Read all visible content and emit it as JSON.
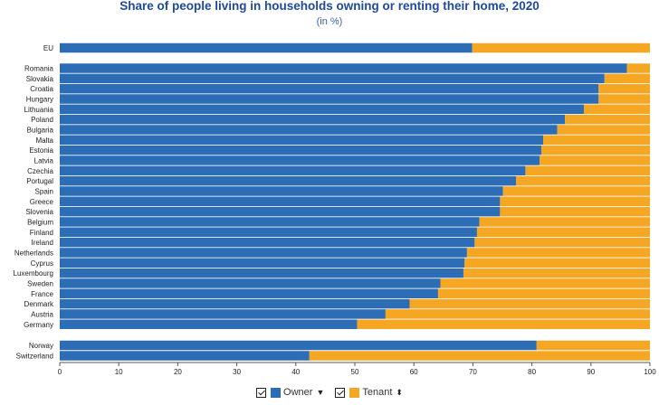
{
  "title": "Share of people living in households owning or renting their home, 2020",
  "subtitle": "(in %)",
  "colors": {
    "owner": "#2c6db5",
    "tenant": "#f5a623"
  },
  "legend": {
    "owner_label": "Owner",
    "tenant_label": "Tenant",
    "owner_sort_icon": "sort-desc-icon",
    "tenant_sort_icon": "sort-both-icon",
    "checkbox_icon": "checkbox-checked-icon"
  },
  "chart_data": {
    "type": "bar",
    "orientation": "horizontal",
    "stacked": true,
    "xlim": [
      0,
      100
    ],
    "xticks": [
      0,
      10,
      20,
      30,
      40,
      50,
      60,
      70,
      80,
      90,
      100
    ],
    "categories": [
      "EU",
      "Romania",
      "Slovakia",
      "Croatia",
      "Hungary",
      "Lithuania",
      "Poland",
      "Bulgaria",
      "Malta",
      "Estonia",
      "Latvia",
      "Czechia",
      "Portugal",
      "Spain",
      "Greece",
      "Slovenia",
      "Belgium",
      "Finland",
      "Ireland",
      "Netherlands",
      "Cyprus",
      "Luxembourg",
      "Sweden",
      "France",
      "Denmark",
      "Austria",
      "Germany",
      "Norway",
      "Switzerland"
    ],
    "groups": [
      [
        0,
        0
      ],
      [
        1,
        26
      ],
      [
        27,
        28
      ]
    ],
    "series": [
      {
        "name": "Owner",
        "values": [
          69.9,
          96.1,
          92.3,
          91.3,
          91.3,
          88.8,
          85.6,
          84.3,
          81.9,
          81.6,
          81.3,
          78.9,
          77.3,
          75.1,
          74.6,
          74.6,
          71.1,
          70.7,
          70.3,
          69.0,
          68.6,
          68.4,
          64.5,
          64.1,
          59.3,
          55.2,
          50.4,
          80.8,
          42.3
        ]
      },
      {
        "name": "Tenant",
        "values": [
          30.1,
          3.9,
          7.7,
          8.7,
          8.7,
          11.2,
          14.4,
          15.7,
          18.1,
          18.4,
          18.7,
          21.1,
          22.7,
          24.9,
          25.4,
          25.4,
          28.9,
          29.3,
          29.7,
          31.0,
          31.4,
          31.6,
          35.5,
          35.9,
          40.7,
          44.8,
          49.6,
          19.2,
          57.7
        ]
      }
    ],
    "grid": false,
    "legend_position": "bottom-center"
  }
}
